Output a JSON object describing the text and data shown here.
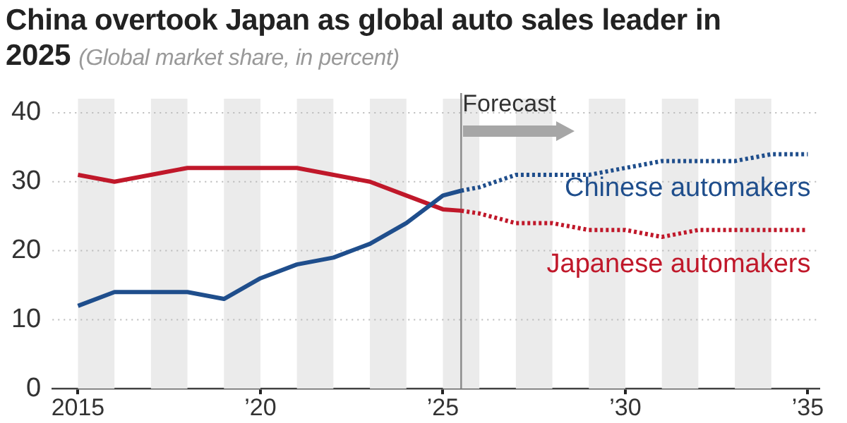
{
  "chart_data": {
    "type": "line",
    "title": "China overtook Japan as global auto sales leader in 2025",
    "subtitle": "(Global market share, in percent)",
    "series": [
      {
        "color": "#1f4e8c",
        "x": [
          2015,
          2016,
          2017,
          2018,
          2019,
          2020,
          2021,
          2022,
          2023,
          2024,
          2025,
          2025.5
        ],
        "values": [
          12,
          14,
          14,
          14,
          13,
          16,
          18,
          19,
          21,
          24,
          28,
          28.7
        ]
      },
      {
        "name": "Chinese automakers",
        "color": "#1f4e8c",
        "line_style": "dotted",
        "x": [
          2025.5,
          2026,
          2027,
          2028,
          2029,
          2030,
          2031,
          2032,
          2033,
          2034,
          2035
        ],
        "values": [
          28.7,
          29.2,
          31,
          31,
          31,
          32,
          33,
          33,
          33,
          34,
          34
        ]
      },
      {
        "color": "#c0182a",
        "x": [
          2015,
          2016,
          2017,
          2018,
          2019,
          2020,
          2021,
          2022,
          2023,
          2024,
          2025,
          2025.5
        ],
        "values": [
          31,
          30,
          31,
          32,
          32,
          32,
          32,
          31,
          30,
          28,
          26,
          25.8
        ]
      },
      {
        "name": "Japanese automakers",
        "color": "#c0182a",
        "line_style": "dotted",
        "x": [
          2025.5,
          2026,
          2027,
          2028,
          2029,
          2030,
          2031,
          2032,
          2033,
          2034,
          2035
        ],
        "values": [
          25.8,
          25.4,
          24,
          24,
          23,
          23,
          22,
          23,
          23,
          23,
          23
        ]
      }
    ],
    "xlim": [
      2014.3,
      2035.3
    ],
    "xticks": [
      2015,
      {
        "value": 2020,
        "label": "’20"
      },
      {
        "value": 2025,
        "label": "’25"
      },
      {
        "value": 2030,
        "label": "’30"
      },
      {
        "value": 2035,
        "label": "’35"
      }
    ],
    "ylim": [
      0,
      40
    ],
    "yticks": [
      0,
      10,
      20,
      30,
      40
    ],
    "grid": "y",
    "legend": false,
    "marker": "none",
    "ref_lines": [
      {
        "axis": "x",
        "value": 2025.5,
        "label": "Forecast",
        "color": "#888888"
      }
    ],
    "bands": [
      {
        "axis": "x",
        "from": 2015,
        "to": 2016,
        "color": "#ebebeb"
      },
      {
        "axis": "x",
        "from": 2017,
        "to": 2018,
        "color": "#ebebeb"
      },
      {
        "axis": "x",
        "from": 2019,
        "to": 2020,
        "color": "#ebebeb"
      },
      {
        "axis": "x",
        "from": 2021,
        "to": 2022,
        "color": "#ebebeb"
      },
      {
        "axis": "x",
        "from": 2023,
        "to": 2024,
        "color": "#ebebeb"
      },
      {
        "axis": "x",
        "from": 2025,
        "to": 2026,
        "color": "#ebebeb"
      },
      {
        "axis": "x",
        "from": 2027,
        "to": 2028,
        "color": "#ebebeb"
      },
      {
        "axis": "x",
        "from": 2029,
        "to": 2030,
        "color": "#ebebeb"
      },
      {
        "axis": "x",
        "from": 2031,
        "to": 2032,
        "color": "#ebebeb"
      },
      {
        "axis": "x",
        "from": 2033,
        "to": 2034,
        "color": "#ebebeb"
      }
    ]
  }
}
